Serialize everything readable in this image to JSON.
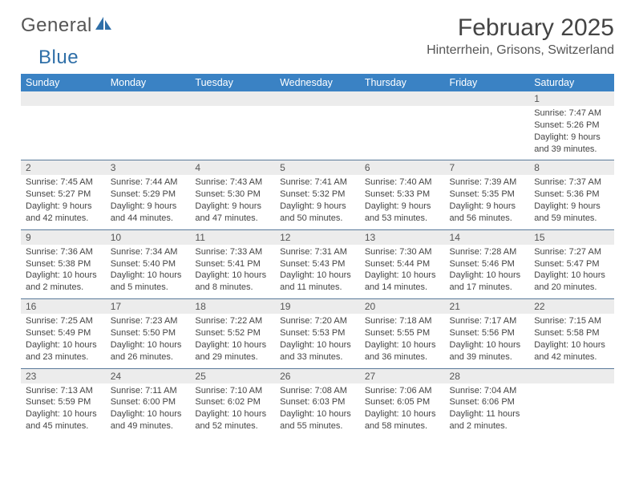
{
  "brand": {
    "part1": "General",
    "part2": "Blue"
  },
  "title": "February 2025",
  "location": "Hinterrhein, Grisons, Switzerland",
  "columns": [
    "Sunday",
    "Monday",
    "Tuesday",
    "Wednesday",
    "Thursday",
    "Friday",
    "Saturday"
  ],
  "colors": {
    "header_bg": "#3a82c4",
    "header_text": "#ffffff",
    "daynum_bg": "#ececec",
    "border": "#5a7a9a",
    "brand_blue": "#2f6fa8"
  },
  "weeks": [
    [
      null,
      null,
      null,
      null,
      null,
      null,
      {
        "n": "1",
        "sr": "7:47 AM",
        "ss": "5:26 PM",
        "dl": "9 hours and 39 minutes."
      }
    ],
    [
      {
        "n": "2",
        "sr": "7:45 AM",
        "ss": "5:27 PM",
        "dl": "9 hours and 42 minutes."
      },
      {
        "n": "3",
        "sr": "7:44 AM",
        "ss": "5:29 PM",
        "dl": "9 hours and 44 minutes."
      },
      {
        "n": "4",
        "sr": "7:43 AM",
        "ss": "5:30 PM",
        "dl": "9 hours and 47 minutes."
      },
      {
        "n": "5",
        "sr": "7:41 AM",
        "ss": "5:32 PM",
        "dl": "9 hours and 50 minutes."
      },
      {
        "n": "6",
        "sr": "7:40 AM",
        "ss": "5:33 PM",
        "dl": "9 hours and 53 minutes."
      },
      {
        "n": "7",
        "sr": "7:39 AM",
        "ss": "5:35 PM",
        "dl": "9 hours and 56 minutes."
      },
      {
        "n": "8",
        "sr": "7:37 AM",
        "ss": "5:36 PM",
        "dl": "9 hours and 59 minutes."
      }
    ],
    [
      {
        "n": "9",
        "sr": "7:36 AM",
        "ss": "5:38 PM",
        "dl": "10 hours and 2 minutes."
      },
      {
        "n": "10",
        "sr": "7:34 AM",
        "ss": "5:40 PM",
        "dl": "10 hours and 5 minutes."
      },
      {
        "n": "11",
        "sr": "7:33 AM",
        "ss": "5:41 PM",
        "dl": "10 hours and 8 minutes."
      },
      {
        "n": "12",
        "sr": "7:31 AM",
        "ss": "5:43 PM",
        "dl": "10 hours and 11 minutes."
      },
      {
        "n": "13",
        "sr": "7:30 AM",
        "ss": "5:44 PM",
        "dl": "10 hours and 14 minutes."
      },
      {
        "n": "14",
        "sr": "7:28 AM",
        "ss": "5:46 PM",
        "dl": "10 hours and 17 minutes."
      },
      {
        "n": "15",
        "sr": "7:27 AM",
        "ss": "5:47 PM",
        "dl": "10 hours and 20 minutes."
      }
    ],
    [
      {
        "n": "16",
        "sr": "7:25 AM",
        "ss": "5:49 PM",
        "dl": "10 hours and 23 minutes."
      },
      {
        "n": "17",
        "sr": "7:23 AM",
        "ss": "5:50 PM",
        "dl": "10 hours and 26 minutes."
      },
      {
        "n": "18",
        "sr": "7:22 AM",
        "ss": "5:52 PM",
        "dl": "10 hours and 29 minutes."
      },
      {
        "n": "19",
        "sr": "7:20 AM",
        "ss": "5:53 PM",
        "dl": "10 hours and 33 minutes."
      },
      {
        "n": "20",
        "sr": "7:18 AM",
        "ss": "5:55 PM",
        "dl": "10 hours and 36 minutes."
      },
      {
        "n": "21",
        "sr": "7:17 AM",
        "ss": "5:56 PM",
        "dl": "10 hours and 39 minutes."
      },
      {
        "n": "22",
        "sr": "7:15 AM",
        "ss": "5:58 PM",
        "dl": "10 hours and 42 minutes."
      }
    ],
    [
      {
        "n": "23",
        "sr": "7:13 AM",
        "ss": "5:59 PM",
        "dl": "10 hours and 45 minutes."
      },
      {
        "n": "24",
        "sr": "7:11 AM",
        "ss": "6:00 PM",
        "dl": "10 hours and 49 minutes."
      },
      {
        "n": "25",
        "sr": "7:10 AM",
        "ss": "6:02 PM",
        "dl": "10 hours and 52 minutes."
      },
      {
        "n": "26",
        "sr": "7:08 AM",
        "ss": "6:03 PM",
        "dl": "10 hours and 55 minutes."
      },
      {
        "n": "27",
        "sr": "7:06 AM",
        "ss": "6:05 PM",
        "dl": "10 hours and 58 minutes."
      },
      {
        "n": "28",
        "sr": "7:04 AM",
        "ss": "6:06 PM",
        "dl": "11 hours and 2 minutes."
      },
      null
    ]
  ],
  "labels": {
    "sunrise": "Sunrise:",
    "sunset": "Sunset:",
    "daylight": "Daylight:"
  }
}
